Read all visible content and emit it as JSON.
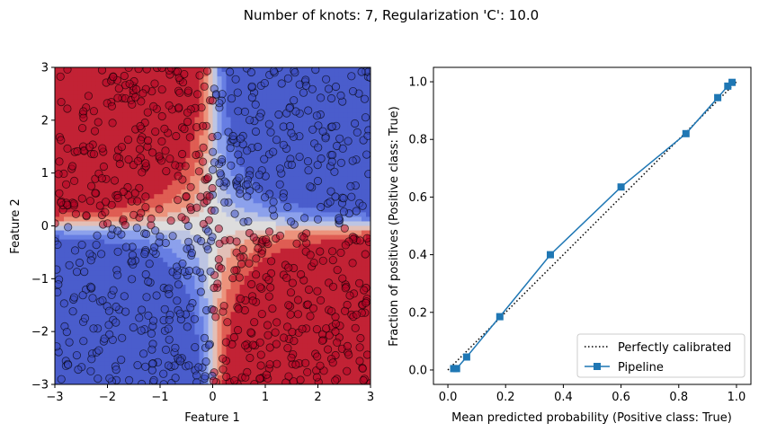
{
  "figure": {
    "title": "Number of knots: 7, Regularization 'C': 10.0"
  },
  "chart_data": [
    {
      "type": "scatter",
      "xlabel": "Feature 1",
      "ylabel": "Feature 2",
      "xlim": [
        -3,
        3
      ],
      "ylim": [
        -3,
        3
      ],
      "xticks": [
        -3,
        -2,
        -1,
        0,
        1,
        2,
        3
      ],
      "yticks": [
        -3,
        -2,
        -1,
        0,
        1,
        2,
        3
      ],
      "xtick_labels": [
        "−3",
        "−2",
        "−1",
        "0",
        "1",
        "2",
        "3"
      ],
      "ytick_labels": [
        "−3",
        "−2",
        "−1",
        "0",
        "1",
        "2",
        "3"
      ],
      "background": "decision surface (coolwarm colormap) separating XOR-like quadrants: positive class in top-left and bottom-right, negative class in top-right and bottom-left",
      "points_description": "about 1000 points uniformly spread over [-3,3] x [-3,3], colored by class (red = True where x*y < 0, blue = False)",
      "class_colors": {
        "True": "#b40426",
        "False": "#3b4cc0"
      },
      "grid": false
    },
    {
      "type": "line",
      "xlabel": "Mean predicted probability (Positive class: True)",
      "ylabel": "Fraction of positives (Positive class: True)",
      "xlim": [
        -0.05,
        1.05
      ],
      "ylim": [
        -0.05,
        1.05
      ],
      "xticks": [
        0.0,
        0.2,
        0.4,
        0.6,
        0.8,
        1.0
      ],
      "yticks": [
        0.0,
        0.2,
        0.4,
        0.6,
        0.8,
        1.0
      ],
      "xtick_labels": [
        "0.0",
        "0.2",
        "0.4",
        "0.6",
        "0.8",
        "1.0"
      ],
      "ytick_labels": [
        "0.0",
        "0.2",
        "0.4",
        "0.6",
        "0.8",
        "1.0"
      ],
      "grid": false,
      "legend_position": "lower-right",
      "series": [
        {
          "name": "Perfectly calibrated",
          "style": "dotted",
          "color": "#000000",
          "x": [
            0,
            1
          ],
          "y": [
            0,
            1
          ]
        },
        {
          "name": "Pipeline",
          "style": "solid",
          "marker": "square",
          "color": "#1f77b4",
          "x": [
            0.02,
            0.03,
            0.065,
            0.18,
            0.355,
            0.6,
            0.825,
            0.935,
            0.97,
            0.985
          ],
          "y": [
            0.005,
            0.005,
            0.045,
            0.185,
            0.4,
            0.635,
            0.82,
            0.945,
            0.985,
            0.998
          ]
        }
      ]
    }
  ]
}
